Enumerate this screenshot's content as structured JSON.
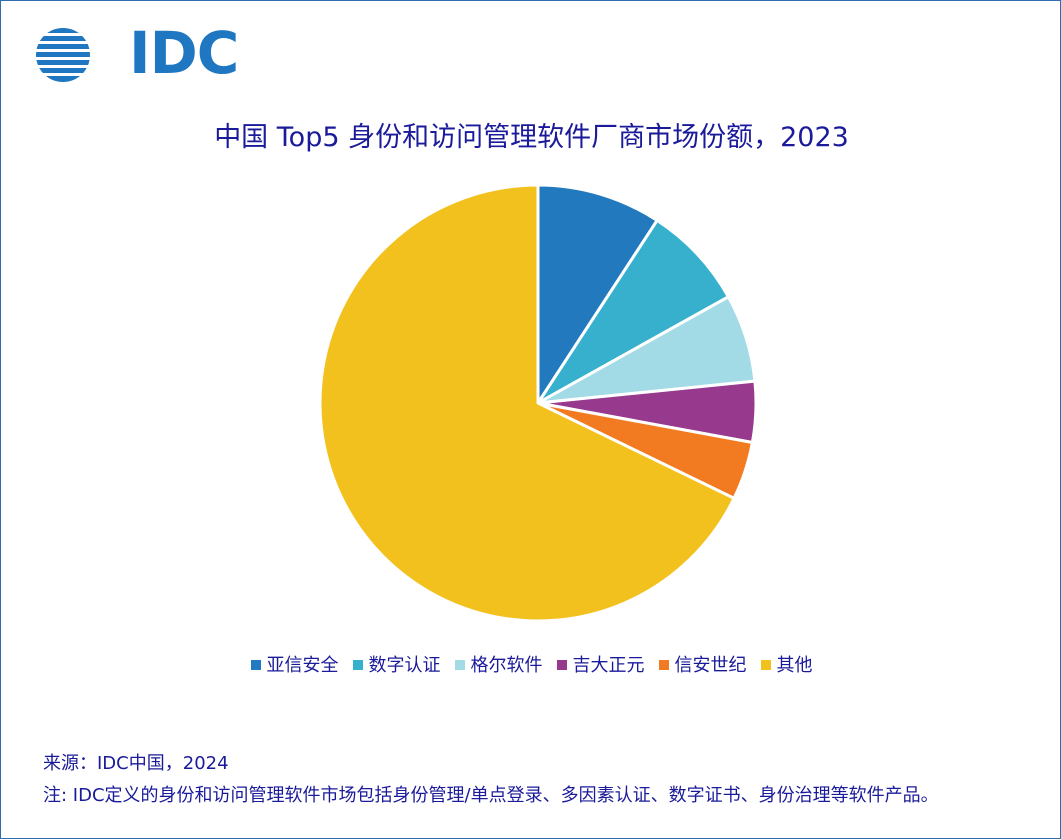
{
  "logo": {
    "text": "IDC",
    "icon": "globe-stripes-icon",
    "color": "#1f77c2"
  },
  "chart_data": {
    "type": "pie",
    "title": "中国 Top5 身份和访问管理软件厂商市场份额，2023",
    "categories": [
      "亚信安全",
      "数字认证",
      "格尔软件",
      "吉大正元",
      "信安世纪",
      "其他"
    ],
    "values": [
      9.2,
      7.7,
      6.5,
      4.5,
      4.3,
      67.8
    ],
    "colors": [
      "#2279bd",
      "#36b0cc",
      "#a2dbe6",
      "#973a8d",
      "#f27b21",
      "#f3c11e"
    ],
    "legend_position": "bottom",
    "start_angle_deg": 0,
    "direction": "clockwise"
  },
  "footer": {
    "source": "来源：IDC中国，2024",
    "note": "注: IDC定义的身份和访问管理软件市场包括身份管理/单点登录、多因素认证、数字证书、身份治理等软件产品。"
  }
}
